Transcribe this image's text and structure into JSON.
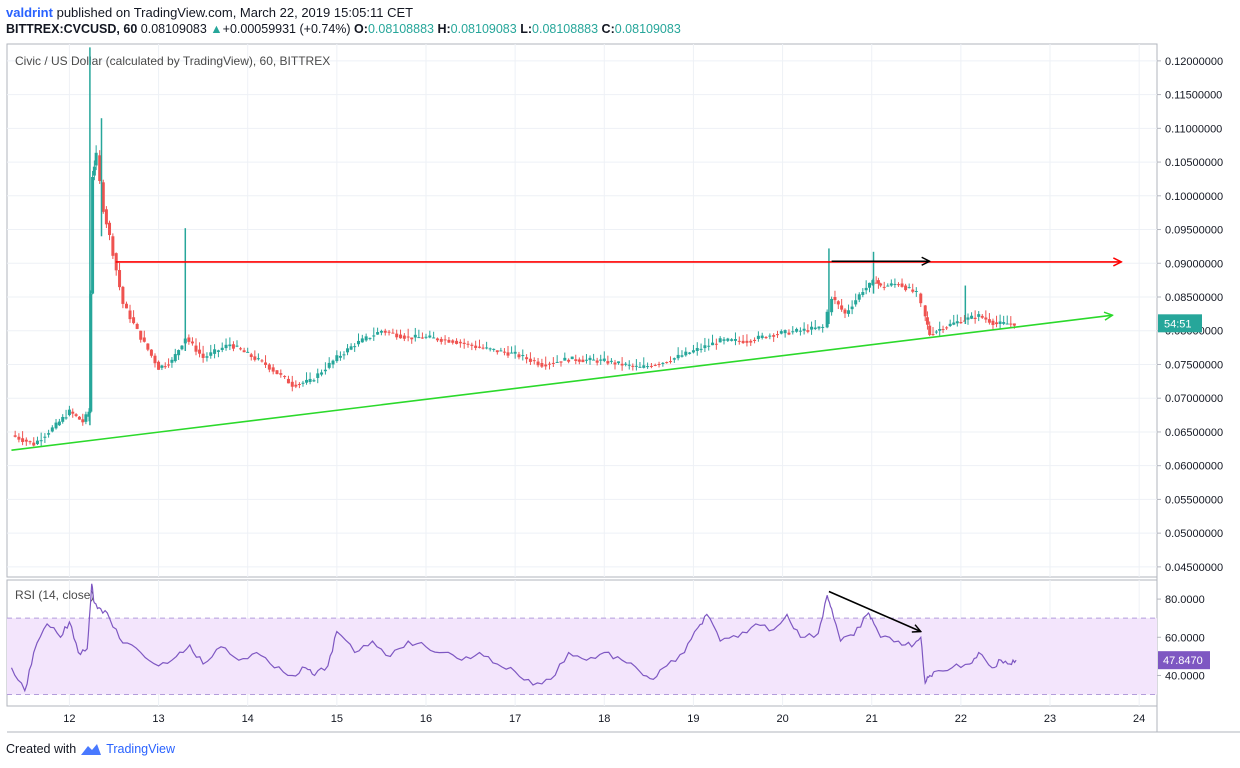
{
  "header": {
    "author": "valdrint",
    "published_text": "published on TradingView.com, March 22, 2019 15:05:11 CET",
    "symbol": "BITTREX:CVCUSD, 60",
    "last": "0.08109083",
    "change": "+0.00059931 (+0.74%)",
    "o_label": "O:",
    "o": "0.08108883",
    "h_label": "H:",
    "h": "0.08109083",
    "l_label": "L:",
    "l": "0.08108883",
    "c_label": "C:",
    "c": "0.08109083"
  },
  "footer": {
    "created_with": "Created with",
    "brand": "TradingView"
  },
  "colors": {
    "up": "#26a69a",
    "down": "#ef5350",
    "resistance": "#ff0000",
    "support": "#2bd92b",
    "rsi_line": "#7e57c2",
    "rsi_band": "#f3e5fc",
    "badge": "#26a69a",
    "rsi_badge": "#7e57c2"
  },
  "chart_data": [
    {
      "type": "line",
      "title": "Civic / US Dollar (calculated by TradingView), 60, BITTREX",
      "x_tick_labels": [
        "12",
        "13",
        "14",
        "15",
        "16",
        "17",
        "18",
        "19",
        "20",
        "21",
        "22",
        "23",
        "24"
      ],
      "y_tick_labels": [
        "0.12000000",
        "0.11500000",
        "0.11000000",
        "0.10500000",
        "0.10000000",
        "0.09500000",
        "0.09000000",
        "0.08500000",
        "0.08000000",
        "0.07500000",
        "0.07000000",
        "0.06500000",
        "0.06000000",
        "0.05500000",
        "0.05000000",
        "0.04500000"
      ],
      "xlim_days": [
        11.3,
        24.2
      ],
      "ylim": [
        0.0435,
        0.1225
      ],
      "last_price_badge": "54:51",
      "series": [
        {
          "x": [
            11.35,
            11.6,
            11.85,
            12.0,
            12.15,
            12.22,
            12.26,
            12.3,
            12.38,
            12.45,
            12.6,
            12.8,
            13.0,
            13.15,
            13.3,
            13.5,
            13.8,
            14.0,
            14.2,
            14.5,
            14.7,
            15.0,
            15.2,
            15.5,
            15.8,
            16.0,
            16.3,
            16.6,
            17.0,
            17.3,
            17.6,
            18.0,
            18.4,
            18.7,
            19.0,
            19.3,
            19.6,
            19.9,
            20.2,
            20.45,
            20.55,
            20.7,
            20.9,
            21.05,
            21.1,
            21.3,
            21.5,
            21.6,
            21.65,
            21.8,
            22.0,
            22.2,
            22.4,
            22.6
          ],
          "y": [
            0.0645,
            0.0632,
            0.066,
            0.068,
            0.0665,
            0.068,
            0.103,
            0.106,
            0.098,
            0.094,
            0.084,
            0.079,
            0.0745,
            0.0755,
            0.079,
            0.076,
            0.078,
            0.0765,
            0.075,
            0.072,
            0.0725,
            0.076,
            0.078,
            0.08,
            0.079,
            0.079,
            0.0785,
            0.0775,
            0.0765,
            0.075,
            0.0758,
            0.0755,
            0.0745,
            0.0755,
            0.077,
            0.0785,
            0.0785,
            0.0795,
            0.08,
            0.0805,
            0.085,
            0.0825,
            0.086,
            0.0875,
            0.0865,
            0.087,
            0.0855,
            0.082,
            0.0795,
            0.0805,
            0.0815,
            0.0822,
            0.081,
            0.0811
          ]
        }
      ],
      "lines": [
        {
          "name": "resistance",
          "x": [
            12.52,
            23.8
          ],
          "y": [
            0.0902,
            0.0902
          ]
        },
        {
          "name": "support",
          "x": [
            11.35,
            23.7
          ],
          "y": [
            0.0623,
            0.0823
          ]
        }
      ],
      "annotations": [
        {
          "name": "price-arrow",
          "x": [
            20.55,
            21.65
          ],
          "y": [
            0.0903,
            0.0903
          ]
        }
      ]
    },
    {
      "type": "line",
      "title": "RSI (14, close)",
      "y_tick_labels": [
        "80.0000",
        "60.0000",
        "40.0000"
      ],
      "ylim": [
        24,
        90
      ],
      "band": [
        30,
        70
      ],
      "last_value_badge": "47.8470",
      "series": [
        {
          "x": [
            11.35,
            11.5,
            11.6,
            11.75,
            11.9,
            12.0,
            12.1,
            12.2,
            12.25,
            12.28,
            12.35,
            12.45,
            12.6,
            12.8,
            13.0,
            13.2,
            13.35,
            13.5,
            13.7,
            13.9,
            14.1,
            14.3,
            14.5,
            14.65,
            14.75,
            14.9,
            15.0,
            15.2,
            15.4,
            15.6,
            15.8,
            16.0,
            16.2,
            16.4,
            16.6,
            16.8,
            17.0,
            17.2,
            17.4,
            17.6,
            17.8,
            18.0,
            18.2,
            18.4,
            18.55,
            18.7,
            18.9,
            19.05,
            19.15,
            19.3,
            19.5,
            19.7,
            19.9,
            20.05,
            20.2,
            20.4,
            20.5,
            20.55,
            20.65,
            20.8,
            20.95,
            21.0,
            21.1,
            21.3,
            21.45,
            21.55,
            21.6,
            21.65,
            21.7,
            21.9,
            22.1,
            22.2,
            22.35,
            22.45,
            22.55,
            22.62
          ],
          "y": [
            44,
            32,
            52,
            67,
            60,
            68,
            52,
            54,
            88,
            78,
            75,
            70,
            57,
            52,
            45,
            50,
            56,
            46,
            55,
            48,
            52,
            44,
            40,
            44,
            40,
            45,
            63,
            52,
            58,
            50,
            58,
            55,
            52,
            48,
            52,
            46,
            42,
            35,
            38,
            52,
            48,
            52,
            48,
            42,
            38,
            45,
            52,
            65,
            72,
            58,
            60,
            67,
            64,
            72,
            60,
            62,
            82,
            75,
            58,
            61,
            72,
            70,
            60,
            58,
            55,
            60,
            36,
            40,
            42,
            44,
            46,
            52,
            44,
            48,
            46,
            48
          ]
        }
      ],
      "annotations": [
        {
          "name": "rsi-divergence-arrow",
          "x": [
            20.52,
            21.55
          ],
          "y": [
            84,
            63
          ]
        }
      ]
    }
  ]
}
